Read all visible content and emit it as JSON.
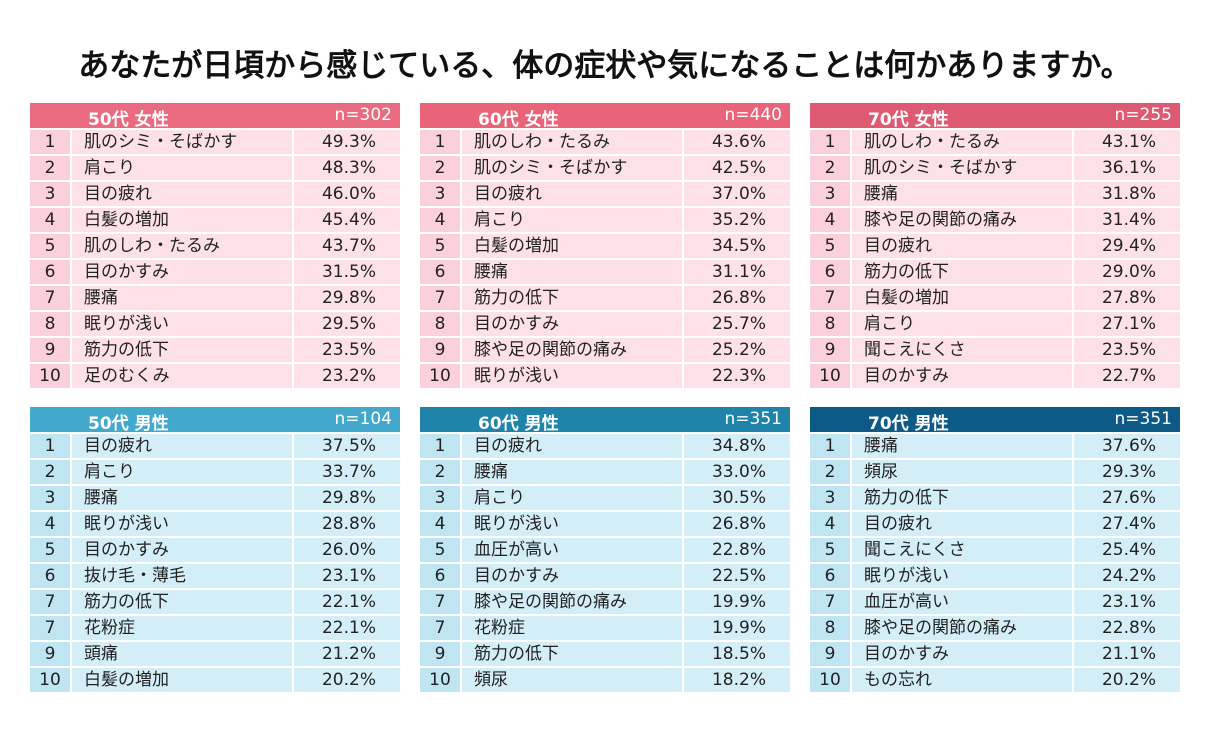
{
  "title": "あなたが日頃から感じている、体の症状や気になることは何かありますか。",
  "tables": [
    {
      "group": "50代 女性",
      "n": "n=302",
      "rows": [
        [
          1,
          "肌のシミ・そばかす",
          "49.3%"
        ],
        [
          2,
          "肩こり",
          "48.3%"
        ],
        [
          3,
          "目の疲れ",
          "46.0%"
        ],
        [
          4,
          "白髪の増加",
          "45.4%"
        ],
        [
          5,
          "肌のしわ・たるみ",
          "43.7%"
        ],
        [
          6,
          "目のかすみ",
          "31.5%"
        ],
        [
          7,
          "腰痛",
          "29.8%"
        ],
        [
          8,
          "眠りが浅い",
          "29.5%"
        ],
        [
          9,
          "筋力の低下",
          "23.5%"
        ],
        [
          10,
          "足のむくみ",
          "23.2%"
        ]
      ]
    },
    {
      "group": "60代 女性",
      "n": "n=440",
      "rows": [
        [
          1,
          "肌のしわ・たるみ",
          "43.6%"
        ],
        [
          2,
          "肌のシミ・そばかす",
          "42.5%"
        ],
        [
          3,
          "目の疲れ",
          "37.0%"
        ],
        [
          4,
          "肩こり",
          "35.2%"
        ],
        [
          5,
          "白髪の増加",
          "34.5%"
        ],
        [
          6,
          "腰痛",
          "31.1%"
        ],
        [
          7,
          "筋力の低下",
          "26.8%"
        ],
        [
          8,
          "目のかすみ",
          "25.7%"
        ],
        [
          9,
          "膝や足の関節の痛み",
          "25.2%"
        ],
        [
          10,
          "眠りが浅い",
          "22.3%"
        ]
      ]
    },
    {
      "group": "70代 女性",
      "n": "n=255",
      "rows": [
        [
          1,
          "肌のしわ・たるみ",
          "43.1%"
        ],
        [
          2,
          "肌のシミ・そばかす",
          "36.1%"
        ],
        [
          3,
          "腰痛",
          "31.8%"
        ],
        [
          4,
          "膝や足の関節の痛み",
          "31.4%"
        ],
        [
          5,
          "目の疲れ",
          "29.4%"
        ],
        [
          6,
          "筋力の低下",
          "29.0%"
        ],
        [
          7,
          "白髪の増加",
          "27.8%"
        ],
        [
          8,
          "肩こり",
          "27.1%"
        ],
        [
          9,
          "聞こえにくさ",
          "23.5%"
        ],
        [
          10,
          "目のかすみ",
          "22.7%"
        ]
      ]
    },
    {
      "group": "50代 男性",
      "n": "n=104",
      "rows": [
        [
          1,
          "目の疲れ",
          "37.5%"
        ],
        [
          2,
          "肩こり",
          "33.7%"
        ],
        [
          3,
          "腰痛",
          "29.8%"
        ],
        [
          4,
          "眠りが浅い",
          "28.8%"
        ],
        [
          5,
          "目のかすみ",
          "26.0%"
        ],
        [
          6,
          "抜け毛・薄毛",
          "23.1%"
        ],
        [
          7,
          "筋力の低下",
          "22.1%"
        ],
        [
          7,
          "花粉症",
          "22.1%"
        ],
        [
          9,
          "頭痛",
          "21.2%"
        ],
        [
          10,
          "白髪の増加",
          "20.2%"
        ]
      ]
    },
    {
      "group": "60代 男性",
      "n": "n=351",
      "rows": [
        [
          1,
          "目の疲れ",
          "34.8%"
        ],
        [
          2,
          "腰痛",
          "33.0%"
        ],
        [
          3,
          "肩こり",
          "30.5%"
        ],
        [
          4,
          "眠りが浅い",
          "26.8%"
        ],
        [
          5,
          "血圧が高い",
          "22.8%"
        ],
        [
          6,
          "目のかすみ",
          "22.5%"
        ],
        [
          7,
          "膝や足の関節の痛み",
          "19.9%"
        ],
        [
          7,
          "花粉症",
          "19.9%"
        ],
        [
          9,
          "筋力の低下",
          "18.5%"
        ],
        [
          10,
          "頻尿",
          "18.2%"
        ]
      ]
    },
    {
      "group": "70代 男性",
      "n": "n=351",
      "rows": [
        [
          1,
          "腰痛",
          "37.6%"
        ],
        [
          2,
          "頻尿",
          "29.3%"
        ],
        [
          3,
          "筋力の低下",
          "27.6%"
        ],
        [
          4,
          "目の疲れ",
          "27.4%"
        ],
        [
          5,
          "聞こえにくさ",
          "25.4%"
        ],
        [
          6,
          "眠りが浅い",
          "24.2%"
        ],
        [
          7,
          "血圧が高い",
          "23.1%"
        ],
        [
          8,
          "膝や足の関節の痛み",
          "22.8%"
        ],
        [
          9,
          "目のかすみ",
          "21.1%"
        ],
        [
          10,
          "もの忘れ",
          "20.2%"
        ]
      ]
    }
  ]
}
